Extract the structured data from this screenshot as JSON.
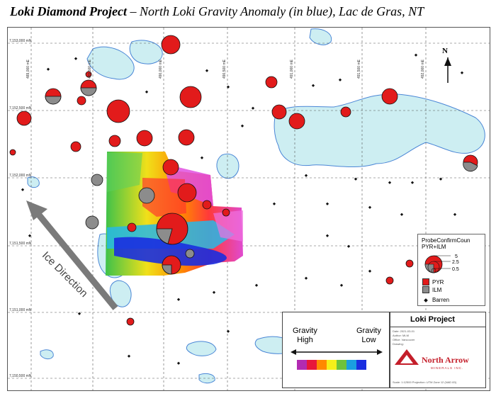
{
  "title": {
    "bold": "Loki Diamond Project",
    "rest": " – North Loki Gravity Anomaly (in blue), Lac de Gras, NT"
  },
  "northings": [
    "7,153,000 mN",
    "7,152,500 mN",
    "7,152,000 mN",
    "7,151,500 mN",
    "7,151,000 mN",
    "7,150,500 mN"
  ],
  "eastings": [
    "489,000 mE",
    "489,500 mE",
    "490,000 mE",
    "490,500 mE",
    "491,000 mE",
    "491,500 mE",
    "492,000 mE"
  ],
  "north_label": "N",
  "ice_direction": "Ice Direction",
  "legend": {
    "title1": "ProbeConfirmCoun",
    "title2": "PYR+ILM",
    "sizes": [
      "5",
      "2.5",
      "0.5"
    ],
    "pyr": "PYR",
    "ilm": "ILM",
    "barren": "Barren",
    "pyr_color": "#e21b1b",
    "ilm_color": "#8c8c8c"
  },
  "gravity_legend": {
    "high_1": "Gravity",
    "high_2": "High",
    "low_1": "Gravity",
    "low_2": "Low",
    "colors": [
      "#b22bb2",
      "#e8173a",
      "#ff8a00",
      "#f5f01a",
      "#6ec23c",
      "#1a9fe0",
      "#1a2ee0"
    ]
  },
  "title_block": {
    "project": "Loki Project",
    "rows": [
      "Date: 2021-03-01",
      "Author: MLM",
      "Office: Vancouver",
      "Drawing:",
      "Scale: 1:12500   Projection: UTM Zone 12 (NAD 83)"
    ],
    "company": "North Arrow",
    "company_sub": "MINERALS INC."
  }
}
